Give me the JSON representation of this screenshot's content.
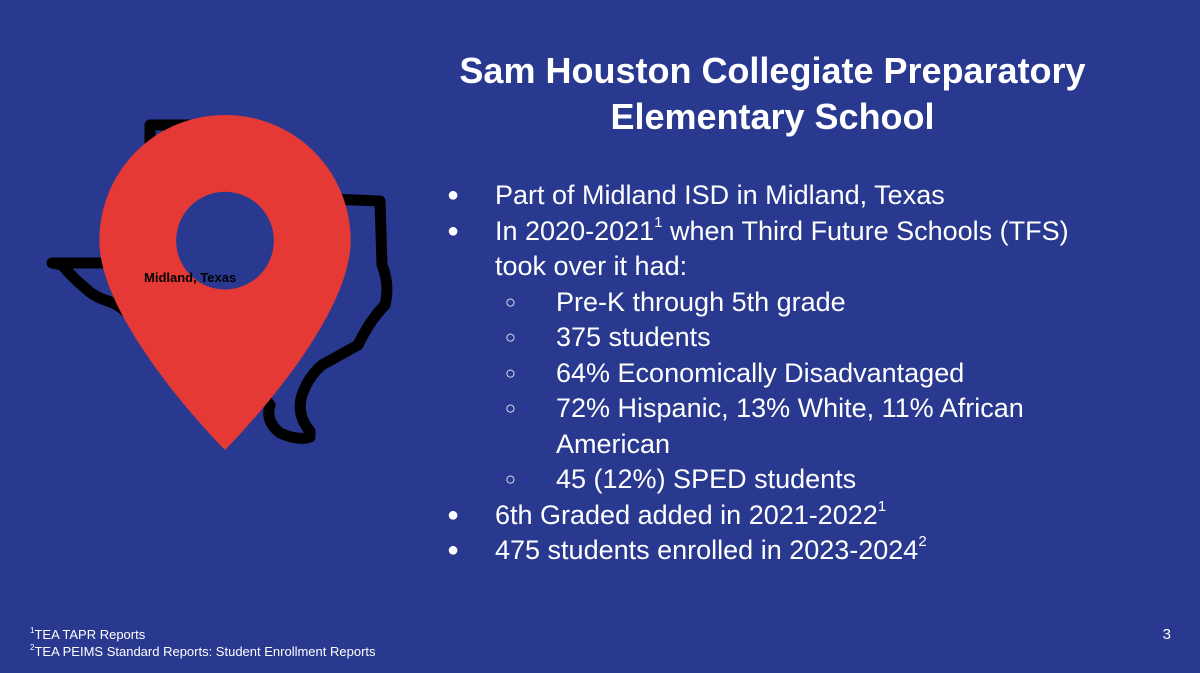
{
  "title_line1": "Sam Houston Collegiate Preparatory",
  "title_line2": "Elementary School",
  "map": {
    "label": "Midland, Texas",
    "outline_color": "#000000",
    "pin_color": "#e53935"
  },
  "bullets": {
    "b1": "Part of Midland ISD in Midland, Texas",
    "b2_pre": "In 2020-2021",
    "b2_sup": "1",
    "b2_post": " when Third Future Schools (TFS) took over it had:",
    "sub": [
      "Pre-K through 5th grade",
      "375 students",
      "64% Economically Disadvantaged",
      "72% Hispanic, 13% White, 11% African American",
      "45 (12%) SPED students"
    ],
    "b3_text": "6th Graded added in 2021-2022",
    "b3_sup": "1",
    "b4_text": "475 students enrolled in 2023-2024",
    "b4_sup": "2",
    "dot": "●",
    "circle": "○"
  },
  "footnotes": {
    "f1_sup": "1",
    "f1_text": "TEA TAPR Reports",
    "f2_sup": "2",
    "f2_text": "TEA PEIMS Standard Reports: Student Enrollment Reports"
  },
  "page_number": "3",
  "colors": {
    "background": "#2a3990",
    "text": "#ffffff"
  }
}
